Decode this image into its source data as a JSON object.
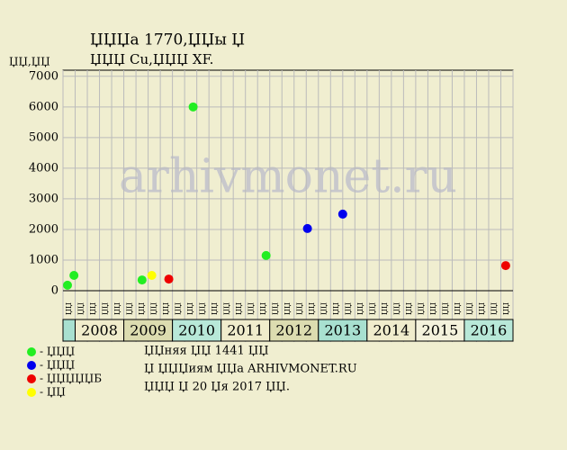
{
  "chart_data": {
    "type": "scatter",
    "title": "ЏЏЏа 1770,ЏЏы Џ",
    "subtitle": "ЏЏЏ Cu,ЏЏЏ XF.",
    "y_label": "ЏЏ,ЏЏ",
    "watermark": "arhivmonet.ru",
    "quarter_label": "ЏЏ",
    "ylim": [
      0,
      7200
    ],
    "yticks": [
      0,
      1000,
      2000,
      3000,
      4000,
      5000,
      6000,
      7000
    ],
    "xlim": [
      0,
      37
    ],
    "xticks": [
      0,
      1,
      2,
      3,
      4,
      5,
      6,
      7,
      8,
      9,
      10,
      11,
      12,
      13,
      14,
      15,
      16,
      17,
      18,
      19,
      20,
      21,
      22,
      23,
      24,
      25,
      26,
      27,
      28,
      29,
      30,
      31,
      32,
      33,
      34,
      35,
      36,
      37
    ],
    "grid": true,
    "years": [
      "2008",
      "2009",
      "2010",
      "2011",
      "2012",
      "2013",
      "2014",
      "2015",
      "2016"
    ],
    "year_colors": [
      "#f0eccc",
      "#dcdcb0",
      "#b8e8d8",
      "#f0eccc",
      "#dcdcb0",
      "#a8e0d0",
      "#f0eccc",
      "#f4f2dc",
      "#b8e8d8"
    ],
    "series": [
      {
        "name": "- ЏЏЏ",
        "color": "#22ee22",
        "x": [
          0.37,
          0.9,
          6.5,
          10.7,
          16.7
        ],
        "values": [
          180,
          500,
          350,
          6000,
          1150
        ]
      },
      {
        "name": "- ЏЏЏ",
        "color": "#0000ee",
        "x": [
          20.1,
          23.0
        ],
        "values": [
          2030,
          2500
        ]
      },
      {
        "name": "- ЏЏЏЏЏБ",
        "color": "#ee0000",
        "x": [
          8.7,
          36.4
        ],
        "values": [
          380,
          820
        ]
      },
      {
        "name": "- ЏЏ",
        "color": "#ffff00",
        "x": [
          7.3
        ],
        "values": [
          500
        ]
      }
    ],
    "notes": [
      "ЏЏняя ЏЏ 1441 ЏЏ",
      "Џ ЏЏЏиям ЏЏа ARHIVMONET.RU",
      "ЏЏЏ Џ 20 Џя 2017 ЏЏ."
    ]
  }
}
